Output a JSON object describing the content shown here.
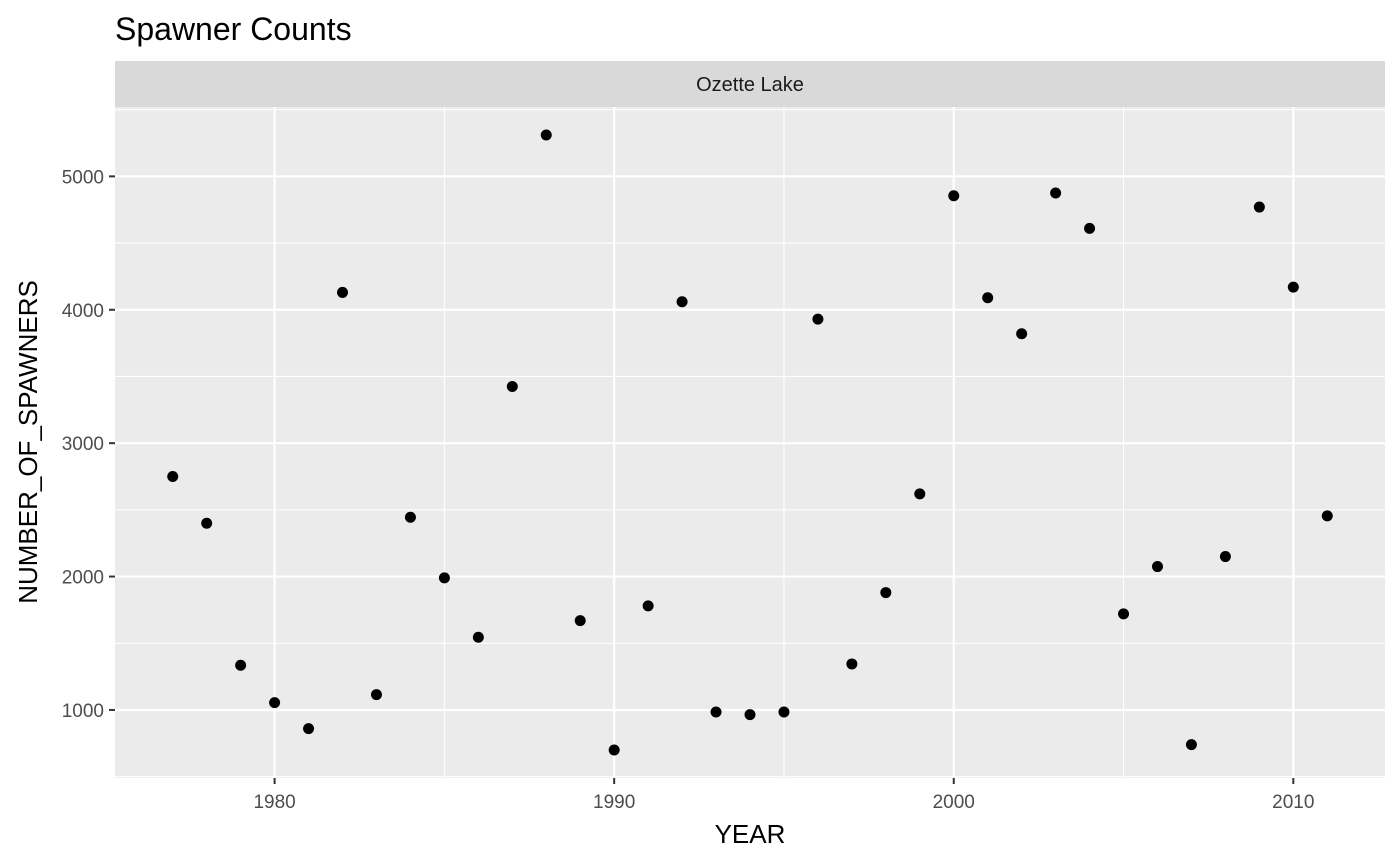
{
  "chart_data": {
    "type": "scatter",
    "title": "Spawner Counts",
    "facet_label": "Ozette Lake",
    "xlabel": "YEAR",
    "ylabel": "NUMBER_OF_SPAWNERS",
    "xlim": [
      1975.3,
      2012.7
    ],
    "ylim": [
      490,
      5520
    ],
    "x_ticks": [
      1980,
      1990,
      2000,
      2010
    ],
    "x_tick_labels": [
      "1980",
      "1990",
      "2000",
      "2010"
    ],
    "y_ticks": [
      1000,
      2000,
      3000,
      4000,
      5000
    ],
    "y_tick_labels": [
      "1000",
      "2000",
      "3000",
      "4000",
      "5000"
    ],
    "grid": true,
    "legend": "none",
    "colors": {
      "panel_background": "#ebebeb",
      "strip_background": "#d9d9d9",
      "grid": "#ffffff",
      "point": "#000000"
    },
    "points": [
      {
        "x": 1977,
        "y": 2750
      },
      {
        "x": 1978,
        "y": 2400
      },
      {
        "x": 1979,
        "y": 1335
      },
      {
        "x": 1980,
        "y": 1055
      },
      {
        "x": 1981,
        "y": 860
      },
      {
        "x": 1982,
        "y": 4130
      },
      {
        "x": 1983,
        "y": 1115
      },
      {
        "x": 1984,
        "y": 2445
      },
      {
        "x": 1985,
        "y": 1990
      },
      {
        "x": 1986,
        "y": 1545
      },
      {
        "x": 1987,
        "y": 3425
      },
      {
        "x": 1988,
        "y": 5310
      },
      {
        "x": 1989,
        "y": 1670
      },
      {
        "x": 1990,
        "y": 700
      },
      {
        "x": 1991,
        "y": 1780
      },
      {
        "x": 1992,
        "y": 4060
      },
      {
        "x": 1993,
        "y": 985
      },
      {
        "x": 1994,
        "y": 965
      },
      {
        "x": 1995,
        "y": 985
      },
      {
        "x": 1996,
        "y": 3930
      },
      {
        "x": 1997,
        "y": 1345
      },
      {
        "x": 1998,
        "y": 1880
      },
      {
        "x": 1999,
        "y": 2620
      },
      {
        "x": 2000,
        "y": 4855
      },
      {
        "x": 2001,
        "y": 4090
      },
      {
        "x": 2002,
        "y": 3820
      },
      {
        "x": 2003,
        "y": 4875
      },
      {
        "x": 2004,
        "y": 4610
      },
      {
        "x": 2005,
        "y": 1720
      },
      {
        "x": 2006,
        "y": 2075
      },
      {
        "x": 2007,
        "y": 740
      },
      {
        "x": 2008,
        "y": 2150
      },
      {
        "x": 2009,
        "y": 4770
      },
      {
        "x": 2010,
        "y": 4170
      },
      {
        "x": 2011,
        "y": 2455
      }
    ]
  }
}
